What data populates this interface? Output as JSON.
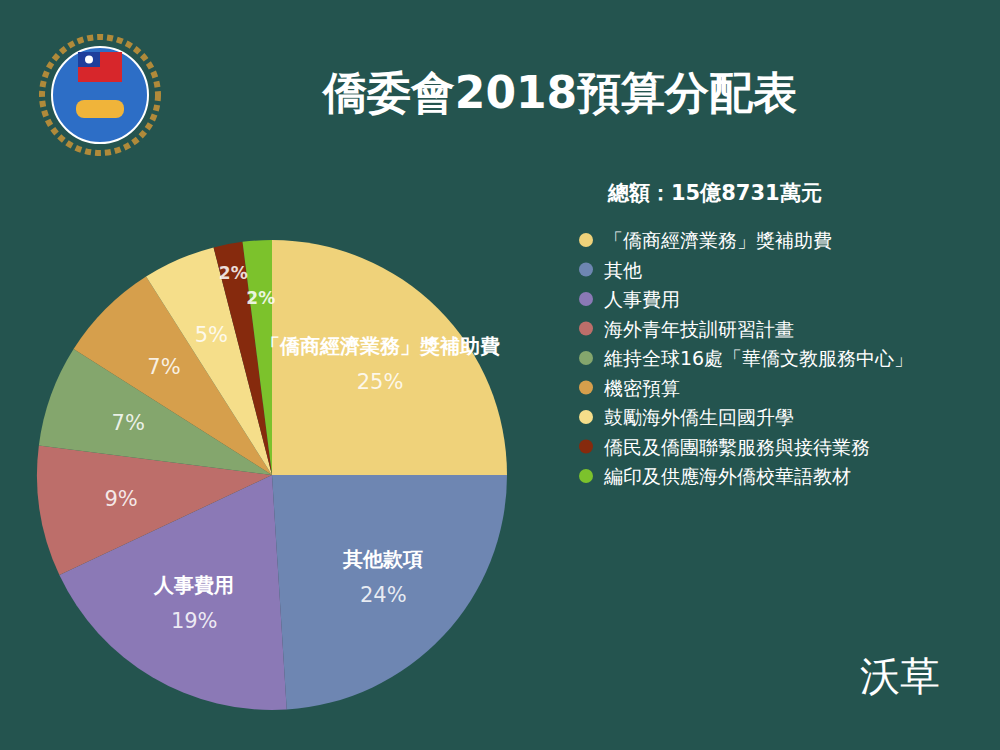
{
  "chart_data": {
    "type": "pie",
    "title": "僑委會2018預算分配表",
    "subtitle": "總額：15億8731萬元",
    "categories": [
      "「僑商經濟業務」獎補助費",
      "其他",
      "人事費用",
      "海外青年技訓研習計畫",
      "維持全球16處「華僑文教服務中心」",
      "機密預算",
      "鼓勵海外僑生回國升學",
      "僑民及僑團聯繫服務與接待業務",
      "編印及供應海外僑校華語教材"
    ],
    "values": [
      25,
      24,
      19,
      9,
      7,
      7,
      5,
      2,
      2
    ],
    "value_labels": [
      "25%",
      "24%",
      "19%",
      "9%",
      "7%",
      "7%",
      "5%",
      "2%",
      "2%"
    ],
    "slice_names": [
      "「僑商經濟業務」獎補助費",
      "其他款項",
      "人事費用",
      null,
      null,
      null,
      null,
      null,
      null
    ],
    "colors": [
      "#efd27a",
      "#6e86b2",
      "#8b79b6",
      "#bd6e6a",
      "#84a66d",
      "#d69f4c",
      "#f5de8a",
      "#862a0d",
      "#7cc22c"
    ],
    "legend": "right",
    "data_labels": true
  },
  "credit": "沃草"
}
